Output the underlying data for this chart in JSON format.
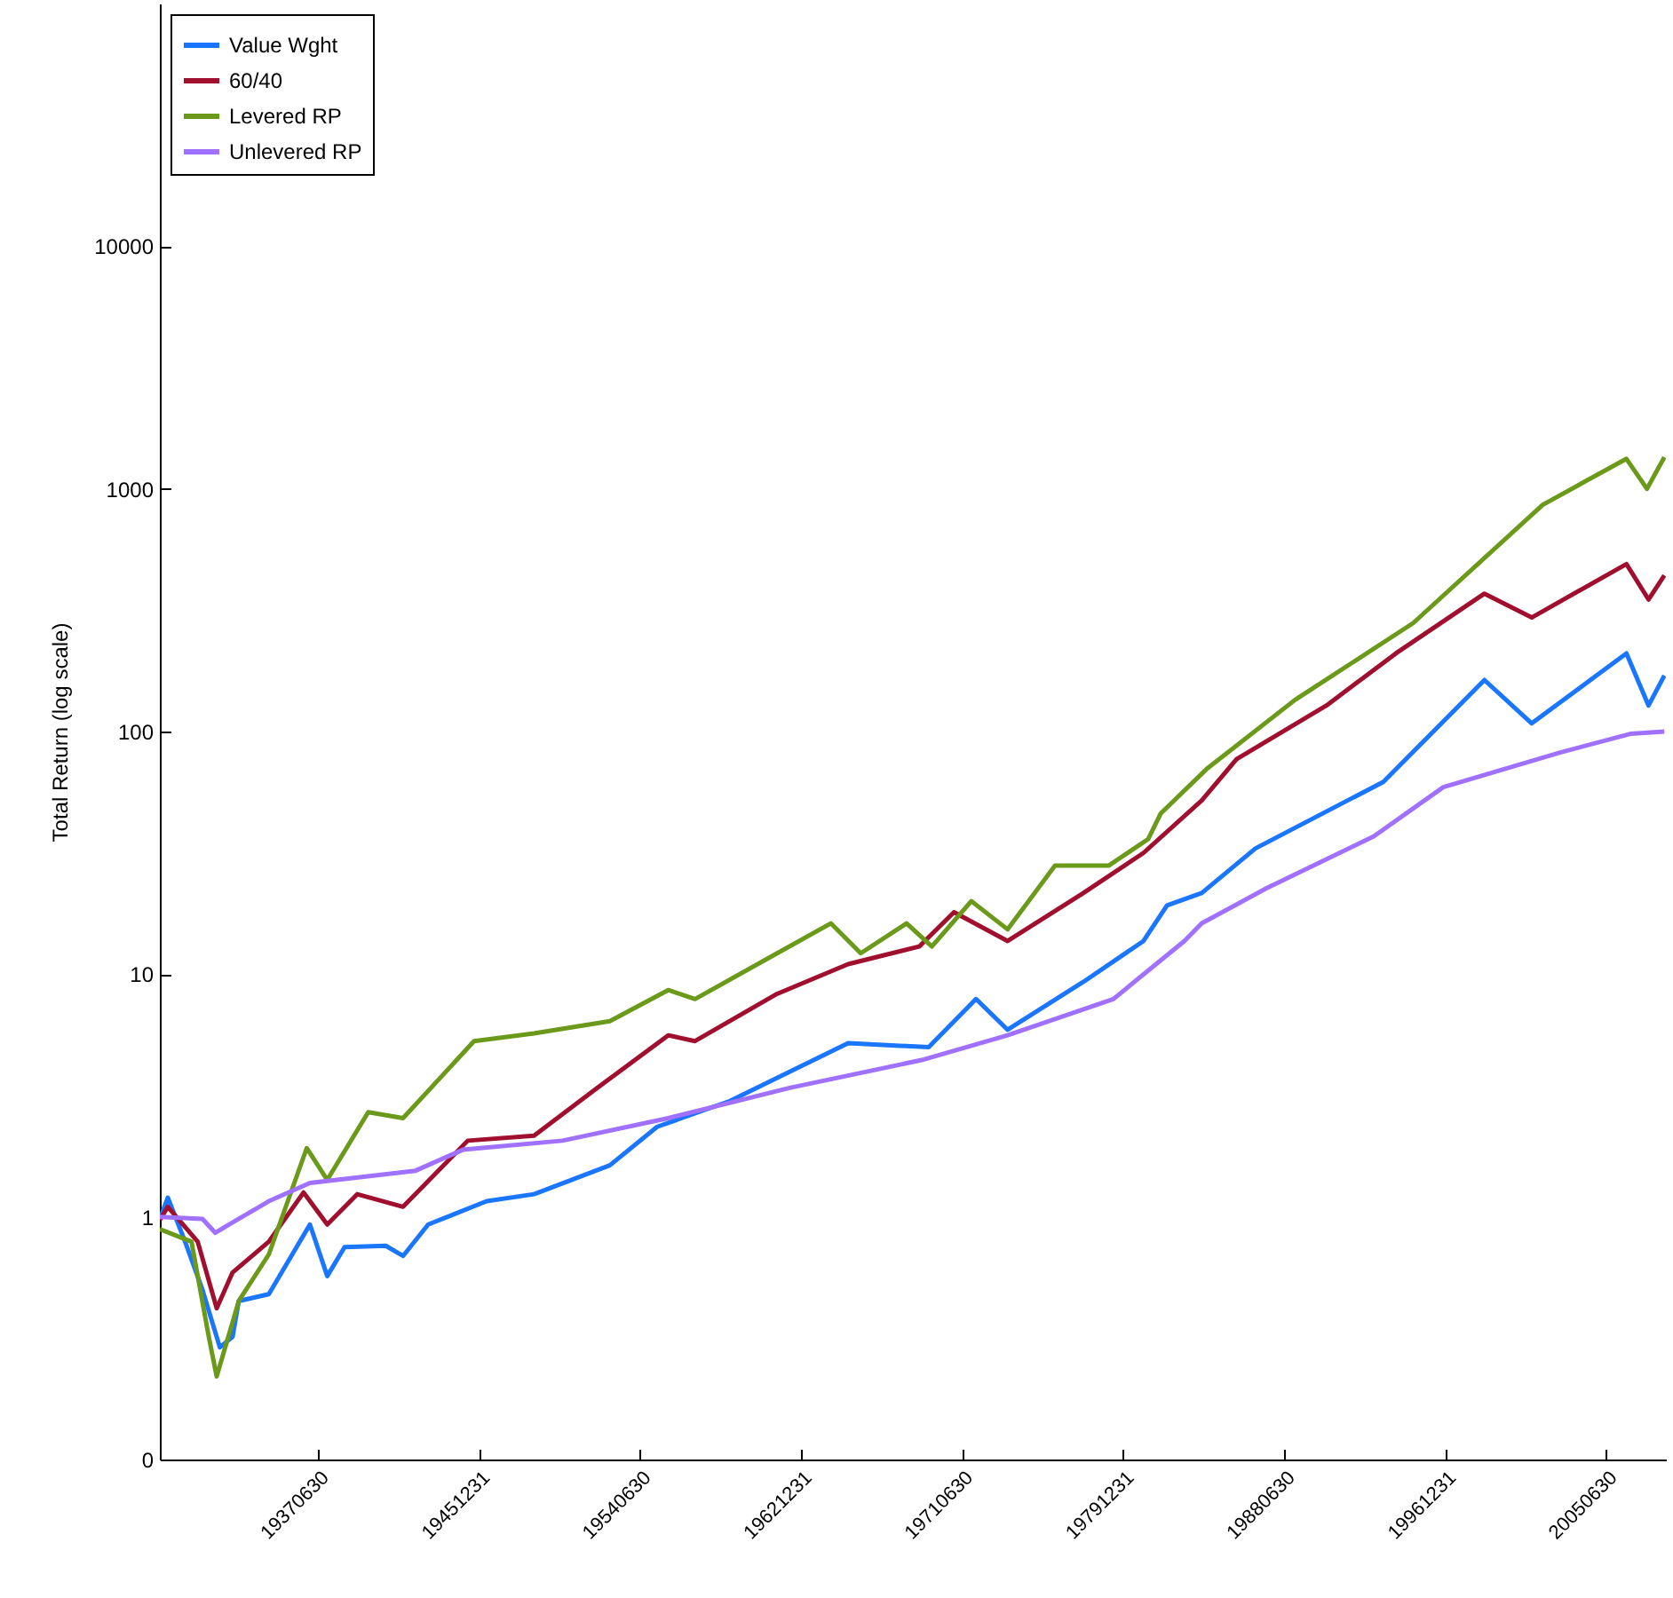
{
  "chart_data": {
    "type": "line",
    "ylabel": "Total Return (log scale)",
    "log": "y",
    "legend": "top left",
    "grid": false,
    "line_style": "solid",
    "xlim": [
      "1929-03-01",
      "2008-08-31"
    ],
    "xticks": [
      {
        "value": "1937-06-30",
        "label": "19370630"
      },
      {
        "value": "1945-12-31",
        "label": "19451231"
      },
      {
        "value": "1954-06-30",
        "label": "19540630"
      },
      {
        "value": "1962-12-31",
        "label": "19621231"
      },
      {
        "value": "1971-06-30",
        "label": "19710630"
      },
      {
        "value": "1979-12-31",
        "label": "19791231"
      },
      {
        "value": "1988-06-30",
        "label": "19880630"
      },
      {
        "value": "1996-12-31",
        "label": "19961231"
      },
      {
        "value": "2005-06-30",
        "label": "20050630"
      }
    ],
    "ylim": [
      0.1,
      100000
    ],
    "yticks": [
      {
        "value": 0.1,
        "label": "0"
      },
      1,
      10,
      100,
      1000,
      10000
    ],
    "series": [
      {
        "name": "Value Wght",
        "color": "#1a75ff",
        "x": [
          "1929-03",
          "1929-08",
          "1930-07",
          "1931-06",
          "1932-05",
          "1933-01",
          "1933-05",
          "1934-12",
          "1937-02",
          "1938-01",
          "1938-12",
          "1941-02",
          "1942-01",
          "1943-05",
          "1946-06",
          "1948-12",
          "1952-12",
          "1955-06",
          "1959-04",
          "1965-07",
          "1969-10",
          "1972-04",
          "1973-12",
          "1977-12",
          "1981-02",
          "1982-05",
          "1984-03",
          "1987-01",
          "1993-10",
          "1999-02",
          "2001-08",
          "2006-08",
          "2007-10",
          "2008-08"
        ],
        "values": [
          0.98,
          1.2,
          0.79,
          0.5,
          0.29,
          0.32,
          0.45,
          0.48,
          0.93,
          0.57,
          0.75,
          0.76,
          0.69,
          0.93,
          1.16,
          1.24,
          1.63,
          2.35,
          3.0,
          5.2,
          5.0,
          7.9,
          5.9,
          9.3,
          13.7,
          19.2,
          21.6,
          33,
          62,
          163,
          108,
          210,
          128,
          170
        ]
      },
      {
        "name": "60/40",
        "color": "#a0102e",
        "x": [
          "1929-03",
          "1929-08",
          "1931-03",
          "1932-03",
          "1933-01",
          "1934-12",
          "1936-10",
          "1938-01",
          "1939-08",
          "1942-01",
          "1945-06",
          "1948-12",
          "1952-04",
          "1956-01",
          "1957-06",
          "1961-10",
          "1965-07",
          "1969-04",
          "1971-02",
          "1973-12",
          "1977-12",
          "1981-02",
          "1984-03",
          "1986-01",
          "1990-10",
          "1994-06",
          "1999-02",
          "2001-08",
          "2006-08",
          "2007-10",
          "2008-08"
        ],
        "values": [
          0.97,
          1.1,
          0.79,
          0.42,
          0.59,
          0.79,
          1.26,
          0.93,
          1.24,
          1.1,
          2.06,
          2.16,
          3.4,
          5.6,
          5.3,
          8.3,
          11,
          13,
          18,
          13.7,
          21.6,
          31.6,
          52,
          77,
          128,
          210,
          370,
          295,
          490,
          350,
          440
        ]
      },
      {
        "name": "Levered RP",
        "color": "#6b9a1a",
        "x": [
          "1929-03",
          "1930-11",
          "1931-10",
          "1932-03",
          "1933-05",
          "1934-12",
          "1936-12",
          "1938-01",
          "1940-03",
          "1942-01",
          "1945-10",
          "1948-12",
          "1952-12",
          "1956-01",
          "1957-06",
          "1961-10",
          "1964-08",
          "1966-03",
          "1968-08",
          "1969-12",
          "1972-01",
          "1973-12",
          "1976-06",
          "1979-04",
          "1981-05",
          "1982-01",
          "1984-06",
          "1989-02",
          "1995-05",
          "2002-03",
          "2006-08",
          "2007-09",
          "2008-08"
        ],
        "values": [
          0.89,
          0.79,
          0.32,
          0.22,
          0.45,
          0.7,
          1.92,
          1.42,
          2.7,
          2.55,
          5.3,
          5.7,
          6.4,
          8.6,
          7.9,
          12.2,
          16.2,
          12.2,
          16.2,
          13,
          20,
          15.3,
          28,
          28,
          36,
          46,
          70,
          135,
          280,
          860,
          1330,
          1000,
          1350
        ]
      },
      {
        "name": "Unlevered RP",
        "color": "#a070ff",
        "x": [
          "1929-03",
          "1931-06",
          "1932-02",
          "1934-12",
          "1937-02",
          "1942-09",
          "1945-03",
          "1950-06",
          "1956-01",
          "1962-06",
          "1969-07",
          "1973-12",
          "1979-07",
          "1983-04",
          "1984-03",
          "1987-08",
          "1993-04",
          "1996-12",
          "2003-02",
          "2006-11",
          "2008-08"
        ],
        "values": [
          1.0,
          0.98,
          0.86,
          1.16,
          1.38,
          1.55,
          1.89,
          2.06,
          2.55,
          3.4,
          4.45,
          5.6,
          7.9,
          13.7,
          16.2,
          22.6,
          37,
          59,
          82,
          98,
          100
        ]
      }
    ]
  }
}
